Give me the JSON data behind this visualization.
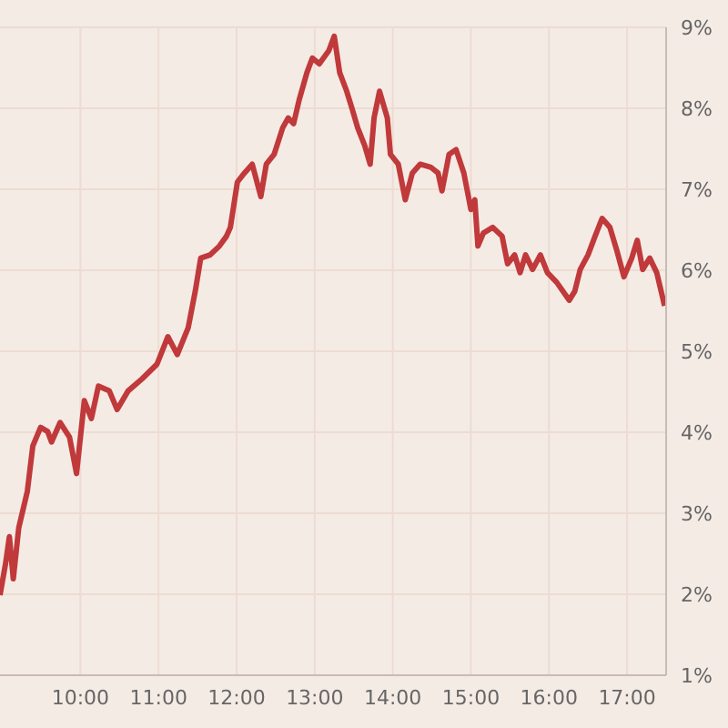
{
  "chart_data": {
    "type": "line",
    "x": [
      8.97,
      9.04,
      9.09,
      9.14,
      9.21,
      9.32,
      9.39,
      9.49,
      9.58,
      9.63,
      9.74,
      9.86,
      9.95,
      10.05,
      10.14,
      10.23,
      10.37,
      10.47,
      10.61,
      10.79,
      10.98,
      11.12,
      11.24,
      11.38,
      11.47,
      11.54,
      11.66,
      11.78,
      11.87,
      11.92,
      12.01,
      12.1,
      12.2,
      12.31,
      12.38,
      12.48,
      12.59,
      12.66,
      12.73,
      12.8,
      12.9,
      12.97,
      13.06,
      13.18,
      13.25,
      13.32,
      13.41,
      13.48,
      13.55,
      13.64,
      13.71,
      13.76,
      13.83,
      13.93,
      13.97,
      14.07,
      14.16,
      14.25,
      14.35,
      14.49,
      14.58,
      14.63,
      14.72,
      14.81,
      14.91,
      15.0,
      15.05,
      15.09,
      15.16,
      15.28,
      15.4,
      15.47,
      15.56,
      15.63,
      15.7,
      15.79,
      15.89,
      15.98,
      16.1,
      16.26,
      16.33,
      16.4,
      16.5,
      16.59,
      16.68,
      16.78,
      16.87,
      16.96,
      17.06,
      17.13,
      17.2,
      17.29,
      17.38,
      17.48
    ],
    "series": [
      {
        "color": "#c0393b",
        "values": [
          1.99,
          2.37,
          2.71,
          2.19,
          2.82,
          3.27,
          3.83,
          4.06,
          4.01,
          3.88,
          4.12,
          3.94,
          3.49,
          4.39,
          4.17,
          4.57,
          4.51,
          4.28,
          4.51,
          4.66,
          4.84,
          5.18,
          4.96,
          5.29,
          5.74,
          6.15,
          6.19,
          6.3,
          6.42,
          6.53,
          7.09,
          7.2,
          7.31,
          6.91,
          7.31,
          7.43,
          7.76,
          7.88,
          7.81,
          8.1,
          8.44,
          8.62,
          8.55,
          8.71,
          8.89,
          8.44,
          8.21,
          7.99,
          7.76,
          7.54,
          7.31,
          7.88,
          8.21,
          7.88,
          7.43,
          7.31,
          6.87,
          7.2,
          7.31,
          7.27,
          7.2,
          6.98,
          7.43,
          7.49,
          7.2,
          6.75,
          6.87,
          6.3,
          6.46,
          6.53,
          6.42,
          6.08,
          6.19,
          5.97,
          6.19,
          6.01,
          6.19,
          5.97,
          5.85,
          5.63,
          5.74,
          6.01,
          6.19,
          6.42,
          6.64,
          6.53,
          6.24,
          5.92,
          6.15,
          6.37,
          6.01,
          6.15,
          5.97,
          5.56
        ]
      }
    ],
    "xlim": [
      8.97,
      17.5
    ],
    "xticks": [
      {
        "value": 10,
        "label": "10:00"
      },
      {
        "value": 11,
        "label": "11:00"
      },
      {
        "value": 12,
        "label": "12:00"
      },
      {
        "value": 13,
        "label": "13:00"
      },
      {
        "value": 14,
        "label": "14:00"
      },
      {
        "value": 15,
        "label": "15:00"
      },
      {
        "value": 16,
        "label": "16:00"
      },
      {
        "value": 17,
        "label": "17:00"
      }
    ],
    "ylim": [
      1,
      9
    ],
    "yticks": [
      {
        "value": 1,
        "label": "1%"
      },
      {
        "value": 2,
        "label": "2%"
      },
      {
        "value": 3,
        "label": "3%"
      },
      {
        "value": 4,
        "label": "4%"
      },
      {
        "value": 5,
        "label": "5%"
      },
      {
        "value": 6,
        "label": "6%"
      },
      {
        "value": 7,
        "label": "7%"
      },
      {
        "value": 8,
        "label": "8%"
      },
      {
        "value": 9,
        "label": "9%"
      }
    ],
    "grid": true,
    "marker": "none",
    "line_style": "solid"
  }
}
